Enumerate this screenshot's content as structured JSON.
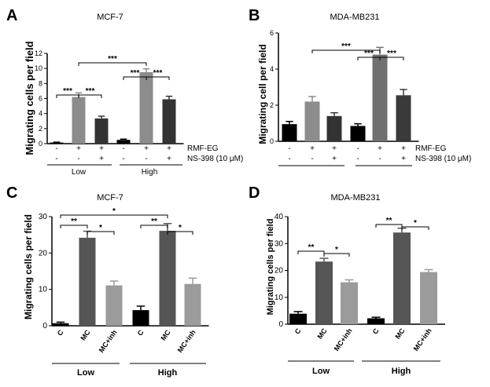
{
  "chart_data": [
    {
      "panel": "A",
      "type": "bar",
      "title": "MCF-7",
      "ylabel": "Migrating cells per field",
      "ylim": [
        0,
        12
      ],
      "yticks": [
        "0",
        "2",
        "4",
        "6",
        "8",
        "10",
        "12"
      ],
      "values": [
        0.15,
        6.2,
        3.35,
        0.5,
        9.5,
        5.9
      ],
      "errors": [
        0.05,
        0.55,
        0.3,
        0.1,
        0.45,
        0.4
      ],
      "colors": [
        "#000000",
        "#8c8c8c",
        "#333333",
        "#000000",
        "#8c8c8c",
        "#333333"
      ],
      "row_labels": [
        "RMF-EG",
        "NS-398 (10 μM)"
      ],
      "rows": [
        [
          "-",
          "+",
          "+",
          "-",
          "+",
          "+"
        ],
        [
          "-",
          "-",
          "+",
          "-",
          "-",
          "+"
        ]
      ],
      "groups": [
        "Low",
        "High"
      ],
      "significance": [
        "***",
        "***",
        "***",
        "***",
        "***"
      ]
    },
    {
      "panel": "B",
      "type": "bar",
      "title": "MDA-MB231",
      "ylabel": "Migrating cell per field",
      "ylim": [
        0,
        6
      ],
      "yticks": [
        "0",
        "2",
        "4",
        "6"
      ],
      "values": [
        0.95,
        2.2,
        1.4,
        0.85,
        4.8,
        2.55
      ],
      "errors": [
        0.15,
        0.28,
        0.18,
        0.12,
        0.4,
        0.32
      ],
      "colors": [
        "#000000",
        "#8c8c8c",
        "#333333",
        "#000000",
        "#707070",
        "#3a3a3a"
      ],
      "row_labels": [
        "RMF-EG",
        "NS-398 (10 μM)"
      ],
      "rows": [
        [
          "-",
          "+",
          "+",
          "-",
          "+",
          "+"
        ],
        [
          "-",
          "-",
          "+",
          "-",
          "-",
          "+"
        ]
      ],
      "significance": [
        "***",
        "***",
        "***"
      ]
    },
    {
      "panel": "C",
      "type": "bar",
      "title": "MCF-7",
      "ylabel": "Migrating cells per field",
      "ylim": [
        0,
        30
      ],
      "yticks": [
        "0",
        "10",
        "20",
        "30"
      ],
      "categories": [
        "C",
        "MC",
        "MC+inh",
        "C",
        "MC",
        "MC+inh"
      ],
      "values": [
        0.7,
        24.2,
        11.1,
        4.3,
        26.1,
        11.5
      ],
      "errors": [
        0.3,
        1.8,
        1.2,
        1.1,
        2.0,
        1.6
      ],
      "colors": [
        "#000000",
        "#555555",
        "#9b9b9b",
        "#000000",
        "#555555",
        "#9b9b9b"
      ],
      "groups": [
        "Low",
        "High"
      ],
      "significance": [
        "*",
        "**",
        "*",
        "**",
        "*"
      ]
    },
    {
      "panel": "D",
      "type": "bar",
      "title": "MDA-MB231",
      "ylabel": "Migrating cells per field",
      "ylim": [
        0,
        40
      ],
      "yticks": [
        "0",
        "10",
        "20",
        "30",
        "40"
      ],
      "categories": [
        "C",
        "MC",
        "MC+inh",
        "C",
        "MC",
        "MC+inh"
      ],
      "values": [
        3.9,
        23.3,
        15.6,
        2.2,
        34.1,
        19.4
      ],
      "errors": [
        0.8,
        1.2,
        0.9,
        0.4,
        1.6,
        0.9
      ],
      "colors": [
        "#000000",
        "#555555",
        "#9b9b9b",
        "#000000",
        "#555555",
        "#9b9b9b"
      ],
      "groups": [
        "Low",
        "High"
      ],
      "significance": [
        "**",
        "*",
        "**",
        "*"
      ]
    }
  ]
}
